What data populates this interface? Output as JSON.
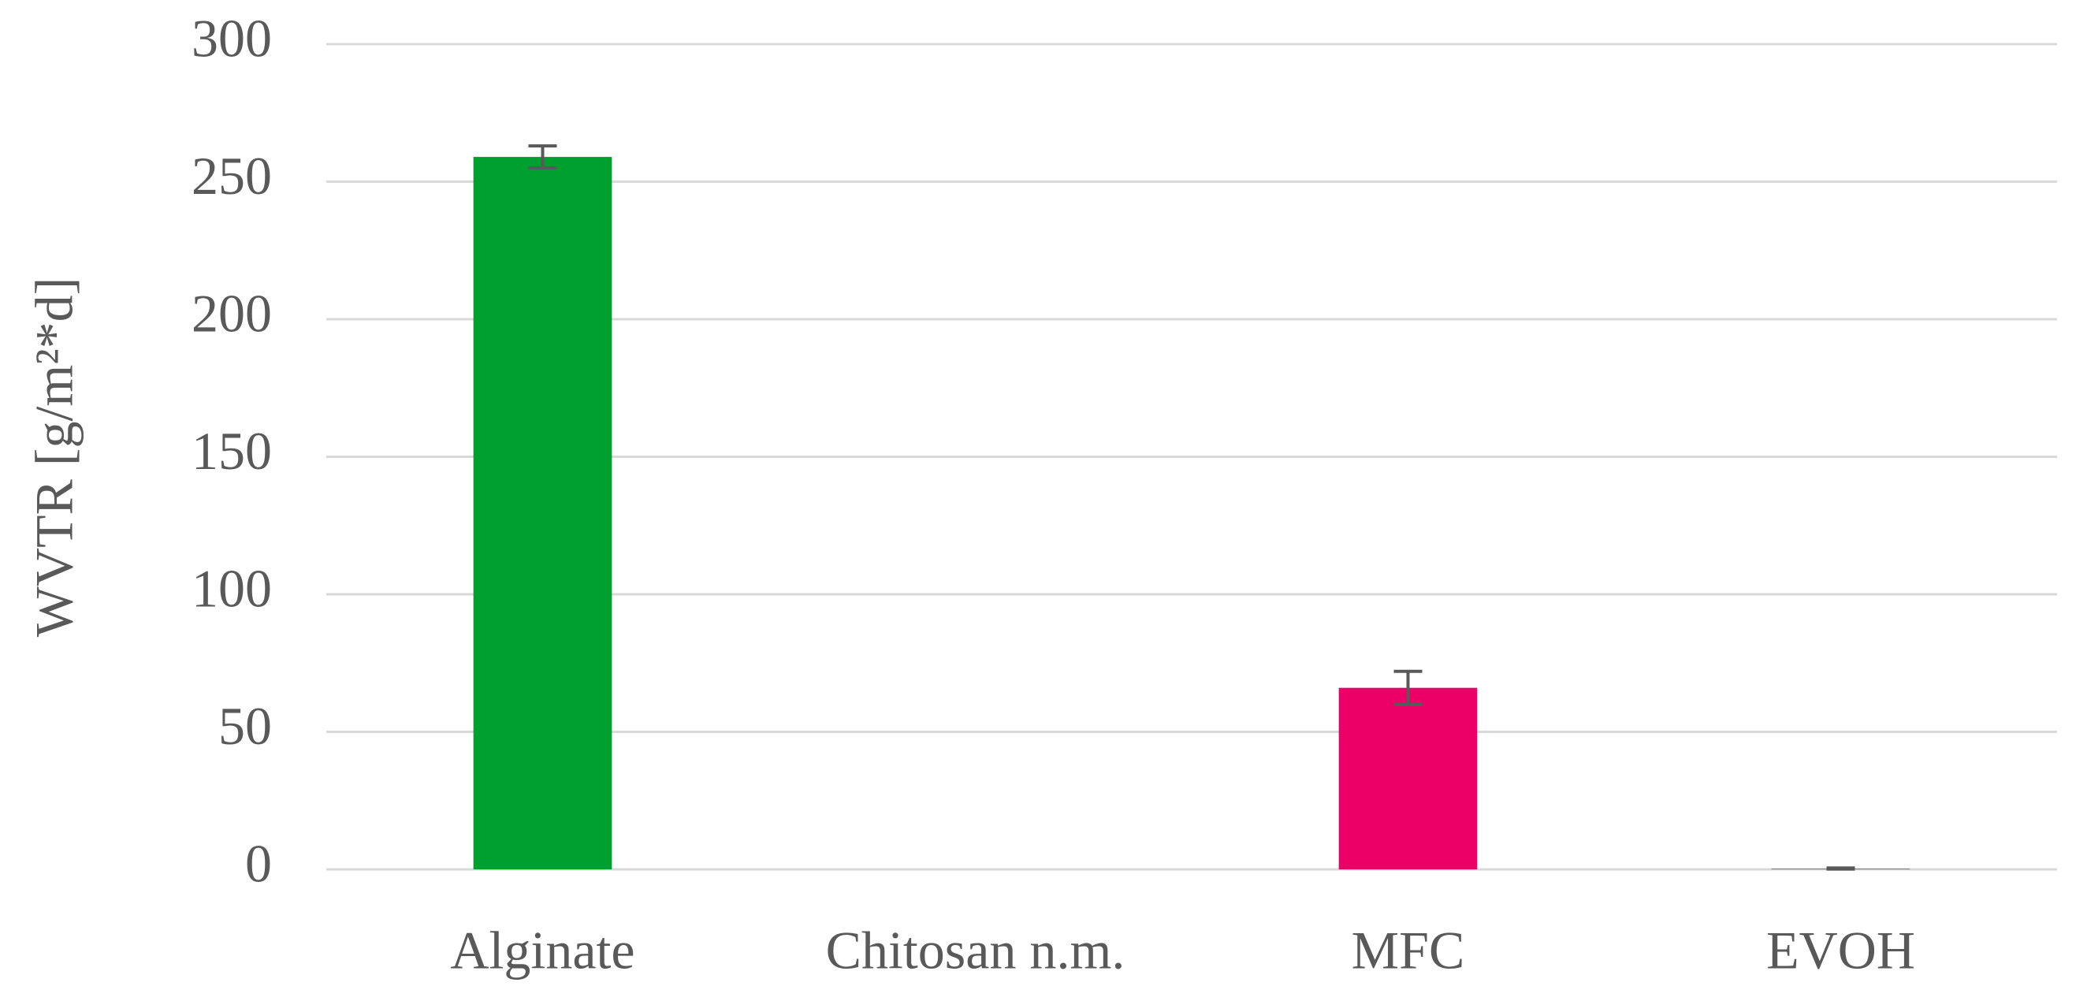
{
  "chart_data": {
    "type": "bar",
    "y_label": "WVTR [g/m²*d]",
    "categories": [
      "Alginate",
      "Chitosan n.m.",
      "MFC",
      "EVOH"
    ],
    "values": [
      259,
      null,
      66,
      0.3
    ],
    "errors": [
      4,
      null,
      6,
      0.2
    ],
    "colors": [
      "#00a030",
      null,
      "#ec0068",
      "#7f7f7f"
    ],
    "ylim": [
      0,
      300
    ],
    "yticks": [
      0,
      50,
      100,
      150,
      200,
      250,
      300
    ],
    "grid": true
  }
}
